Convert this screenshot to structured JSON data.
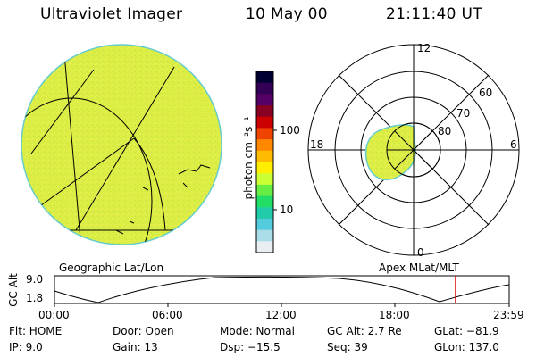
{
  "header": {
    "title": "Ultraviolet Imager",
    "date": "10 May 00",
    "time": "21:11:40 UT"
  },
  "colorbar": {
    "unit_label": "photon cm⁻²s⁻¹",
    "tick_labels": [
      "100",
      "10"
    ],
    "colors": [
      "#000033",
      "#330055",
      "#550066",
      "#880022",
      "#cc0000",
      "#ee4400",
      "#ff8800",
      "#ffbb00",
      "#ffee00",
      "#ccff33",
      "#66ee44",
      "#22dd66",
      "#22ccaa",
      "#55ccdd",
      "#aadde8",
      "#e8eef2"
    ]
  },
  "left_panel": {
    "label": "Geographic Lat/Lon",
    "fill_color": "#ddee44",
    "edge_color": "#66cccc"
  },
  "right_panel": {
    "label": "Apex MLat/MLT",
    "mlt_labels": {
      "top": "12",
      "left": "18",
      "right": "6",
      "bottom": "0"
    },
    "lat_labels": [
      "60",
      "70",
      "80"
    ]
  },
  "altitude_plot": {
    "ylabel": "GC Alt",
    "y_ticks": [
      "9.0",
      "1.8"
    ],
    "x_ticks": [
      "00:00",
      "06:00",
      "12:00",
      "18:00",
      "23:59"
    ],
    "marker_color": "#dd0000"
  },
  "info": {
    "flt": "Flt: HOME",
    "ip": "IP: 9.0",
    "door": "Door: Open",
    "gain": "Gain: 13",
    "mode": "Mode: Normal",
    "dsp": "Dsp: −15.5",
    "gcalt": "GC Alt: 2.7 Re",
    "seq": "Seq: 39",
    "glat": "GLat: −81.9",
    "glon": "GLon: 137.0"
  }
}
